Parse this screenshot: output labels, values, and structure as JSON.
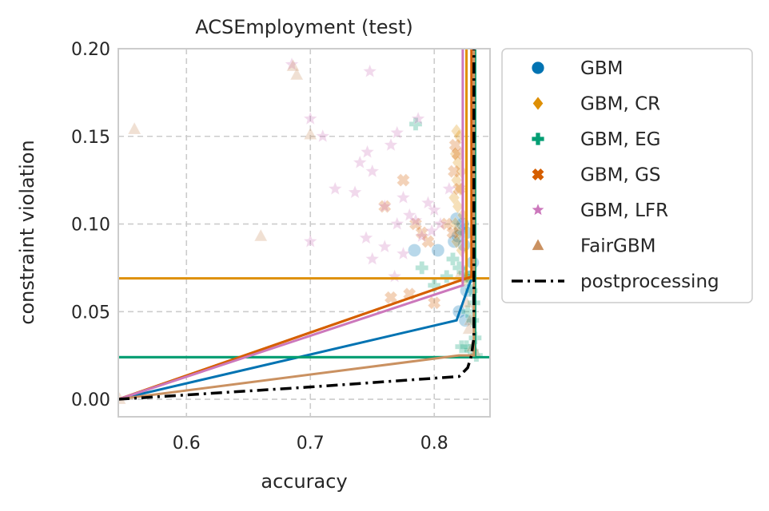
{
  "chart_data": {
    "type": "scatter",
    "title": "ACSEmployment (test)",
    "xlabel": "accuracy",
    "ylabel": "constraint violation",
    "xlim": [
      0.545,
      0.845
    ],
    "ylim": [
      -0.01,
      0.2
    ],
    "xticks": [
      {
        "value": 0.6,
        "label": "0.6"
      },
      {
        "value": 0.7,
        "label": "0.7"
      },
      {
        "value": 0.8,
        "label": "0.8"
      }
    ],
    "yticks": [
      {
        "value": 0.0,
        "label": "0.00"
      },
      {
        "value": 0.05,
        "label": "0.05"
      },
      {
        "value": 0.1,
        "label": "0.10"
      },
      {
        "value": 0.15,
        "label": "0.15"
      },
      {
        "value": 0.2,
        "label": "0.20"
      }
    ],
    "grid": true,
    "legend_position": "outside-right",
    "series": [
      {
        "name": "GBM",
        "marker": "circle",
        "color": "#0173b2",
        "points": [
          [
            0.784,
            0.085
          ],
          [
            0.803,
            0.085
          ],
          [
            0.816,
            0.09
          ],
          [
            0.819,
            0.093
          ],
          [
            0.821,
            0.097
          ],
          [
            0.823,
            0.1
          ],
          [
            0.818,
            0.103
          ],
          [
            0.826,
            0.095
          ],
          [
            0.824,
            0.088
          ],
          [
            0.82,
            0.05
          ],
          [
            0.826,
            0.062
          ],
          [
            0.829,
            0.07
          ],
          [
            0.831,
            0.078
          ],
          [
            0.825,
            0.045
          ]
        ],
        "front": [
          [
            0.545,
            0.0
          ],
          [
            0.818,
            0.045
          ],
          [
            0.828,
            0.065
          ],
          [
            0.832,
            0.072
          ],
          [
            0.832,
            0.2
          ]
        ]
      },
      {
        "name": "GBM, CR",
        "marker": "diamond",
        "color": "#de8f05",
        "points": [
          [
            0.818,
            0.153
          ],
          [
            0.82,
            0.15
          ],
          [
            0.817,
            0.14
          ],
          [
            0.819,
            0.135
          ],
          [
            0.822,
            0.13
          ],
          [
            0.818,
            0.125
          ],
          [
            0.821,
            0.12
          ],
          [
            0.816,
            0.115
          ],
          [
            0.819,
            0.11
          ],
          [
            0.823,
            0.105
          ],
          [
            0.817,
            0.1
          ],
          [
            0.82,
            0.095
          ],
          [
            0.818,
            0.09
          ],
          [
            0.822,
            0.085
          ],
          [
            0.826,
            0.07
          ],
          [
            0.824,
            0.068
          ]
        ],
        "front": [
          [
            0.545,
            0.0
          ],
          [
            0.826,
            0.069
          ],
          [
            0.826,
            0.2
          ]
        ],
        "hline": 0.069
      },
      {
        "name": "GBM, EG",
        "marker": "plus",
        "color": "#029e73",
        "points": [
          [
            0.785,
            0.157
          ],
          [
            0.815,
            0.08
          ],
          [
            0.82,
            0.075
          ],
          [
            0.825,
            0.072
          ],
          [
            0.828,
            0.068
          ],
          [
            0.83,
            0.062
          ],
          [
            0.832,
            0.055
          ],
          [
            0.827,
            0.05
          ],
          [
            0.831,
            0.045
          ],
          [
            0.833,
            0.035
          ],
          [
            0.826,
            0.03
          ],
          [
            0.829,
            0.028
          ],
          [
            0.834,
            0.025
          ],
          [
            0.822,
            0.03
          ],
          [
            0.79,
            0.075
          ],
          [
            0.8,
            0.065
          ],
          [
            0.81,
            0.07
          ]
        ],
        "front": [
          [
            0.545,
            0.024
          ],
          [
            0.833,
            0.024
          ],
          [
            0.833,
            0.2
          ]
        ],
        "hline": 0.024
      },
      {
        "name": "GBM, GS",
        "marker": "x",
        "color": "#d55e00",
        "points": [
          [
            0.775,
            0.125
          ],
          [
            0.76,
            0.11
          ],
          [
            0.785,
            0.1
          ],
          [
            0.79,
            0.095
          ],
          [
            0.795,
            0.09
          ],
          [
            0.81,
            0.1
          ],
          [
            0.815,
            0.095
          ],
          [
            0.817,
            0.145
          ],
          [
            0.819,
            0.14
          ],
          [
            0.816,
            0.13
          ],
          [
            0.82,
            0.12
          ],
          [
            0.765,
            0.058
          ],
          [
            0.78,
            0.06
          ],
          [
            0.8,
            0.055
          ]
        ],
        "front": [
          [
            0.545,
            0.0
          ],
          [
            0.83,
            0.07
          ],
          [
            0.83,
            0.2
          ]
        ]
      },
      {
        "name": "GBM, LFR",
        "marker": "star",
        "color": "#cc78bc",
        "points": [
          [
            0.685,
            0.191
          ],
          [
            0.748,
            0.187
          ],
          [
            0.7,
            0.16
          ],
          [
            0.787,
            0.16
          ],
          [
            0.746,
            0.141
          ],
          [
            0.74,
            0.135
          ],
          [
            0.75,
            0.13
          ],
          [
            0.77,
            0.152
          ],
          [
            0.765,
            0.145
          ],
          [
            0.71,
            0.15
          ],
          [
            0.72,
            0.12
          ],
          [
            0.736,
            0.118
          ],
          [
            0.76,
            0.11
          ],
          [
            0.775,
            0.115
          ],
          [
            0.78,
            0.105
          ],
          [
            0.795,
            0.112
          ],
          [
            0.785,
            0.102
          ],
          [
            0.8,
            0.108
          ],
          [
            0.805,
            0.1
          ],
          [
            0.77,
            0.1
          ],
          [
            0.79,
            0.093
          ],
          [
            0.745,
            0.092
          ],
          [
            0.76,
            0.087
          ],
          [
            0.75,
            0.08
          ],
          [
            0.775,
            0.083
          ],
          [
            0.7,
            0.09
          ],
          [
            0.798,
            0.096
          ],
          [
            0.768,
            0.07
          ],
          [
            0.812,
            0.12
          ]
        ],
        "front": [
          [
            0.545,
            0.0
          ],
          [
            0.823,
            0.065
          ],
          [
            0.823,
            0.2
          ]
        ]
      },
      {
        "name": "FairGBM",
        "marker": "triangle",
        "color": "#ca9161",
        "points": [
          [
            0.558,
            0.154
          ],
          [
            0.689,
            0.185
          ],
          [
            0.686,
            0.19
          ],
          [
            0.7,
            0.151
          ],
          [
            0.66,
            0.093
          ],
          [
            0.82,
            0.07
          ],
          [
            0.826,
            0.055
          ],
          [
            0.829,
            0.045
          ],
          [
            0.828,
            0.04
          ],
          [
            0.831,
            0.03
          ],
          [
            0.833,
            0.027
          ],
          [
            0.546,
            0.0
          ]
        ],
        "front": [
          [
            0.545,
            0.0
          ],
          [
            0.82,
            0.025
          ],
          [
            0.832,
            0.025
          ],
          [
            0.832,
            0.2
          ]
        ]
      },
      {
        "name": "postprocessing",
        "marker": "line",
        "color": "#000000",
        "line_points": [
          [
            0.545,
            0.0
          ],
          [
            0.7,
            0.007
          ],
          [
            0.82,
            0.013
          ],
          [
            0.827,
            0.018
          ],
          [
            0.83,
            0.025
          ],
          [
            0.832,
            0.035
          ],
          [
            0.832,
            0.2
          ]
        ]
      }
    ]
  }
}
